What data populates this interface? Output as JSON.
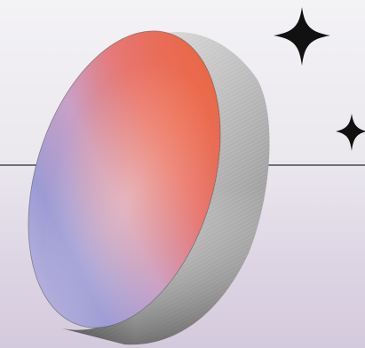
{
  "scene": {
    "subject": "disc-icon",
    "decorations": [
      "sparkle-large-icon",
      "sparkle-small-icon",
      "horizon-line"
    ]
  },
  "colors": {
    "background_top": "#f3f2f5",
    "background_bottom": "#d4cadd",
    "horizon": "#4a4a4a",
    "face_orange": "#e96a4c",
    "face_pink": "#e27e90",
    "face_lavender": "#9b99d2",
    "rim_light": "#d9d9d9",
    "rim_dark": "#6f6f6f",
    "sparkle": "#111111"
  }
}
